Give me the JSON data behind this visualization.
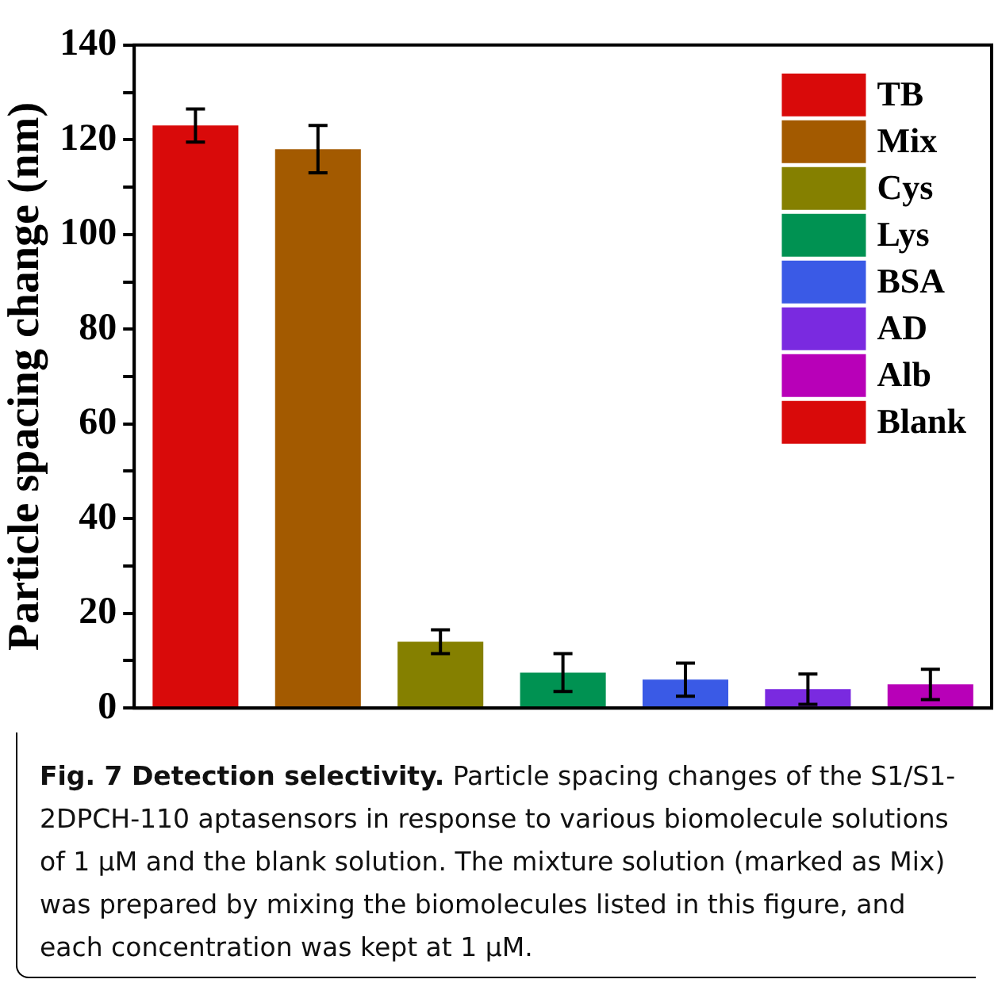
{
  "chart_data": {
    "type": "bar",
    "ylabel": "Particle spacing change (nm)",
    "categories": [
      null,
      null,
      null,
      null,
      null,
      null,
      null
    ],
    "series": [
      {
        "name": "TB",
        "color": "#d90a0a",
        "values": [
          123,
          null,
          null,
          null,
          null,
          null,
          null
        ],
        "errors": [
          3.5,
          null,
          null,
          null,
          null,
          null,
          null
        ]
      },
      {
        "name": "Mix",
        "color": "#a35a00",
        "values": [
          null,
          118,
          null,
          null,
          null,
          null,
          null
        ],
        "errors": [
          null,
          5,
          null,
          null,
          null,
          null,
          null
        ]
      },
      {
        "name": "Cys",
        "color": "#858000",
        "values": [
          null,
          null,
          14,
          null,
          null,
          null,
          null
        ],
        "errors": [
          null,
          null,
          2.5,
          null,
          null,
          null,
          null
        ]
      },
      {
        "name": "Lys",
        "color": "#009252",
        "values": [
          null,
          null,
          null,
          7.5,
          null,
          null,
          null
        ],
        "errors": [
          null,
          null,
          null,
          4,
          null,
          null,
          null
        ]
      },
      {
        "name": "BSA",
        "color": "#3a5ae6",
        "values": [
          null,
          null,
          null,
          null,
          6,
          null,
          null
        ],
        "errors": [
          null,
          null,
          null,
          null,
          3.5,
          null,
          null
        ]
      },
      {
        "name": "AD",
        "color": "#7a2ae0",
        "values": [
          null,
          null,
          null,
          null,
          null,
          4,
          null
        ],
        "errors": [
          null,
          null,
          null,
          null,
          null,
          3.2,
          null
        ]
      },
      {
        "name": "Alb",
        "color": "#b800b8",
        "values": [
          null,
          null,
          null,
          null,
          null,
          null,
          5
        ],
        "errors": [
          null,
          null,
          null,
          null,
          null,
          null,
          3.2
        ]
      },
      {
        "name": "Blank",
        "color": "#d90a0a",
        "values": [
          null,
          null,
          null,
          null,
          null,
          null,
          null
        ]
      }
    ],
    "ylim": [
      0,
      140
    ],
    "yticks": [
      0,
      {
        "value": 10,
        "label": null
      },
      20,
      {
        "value": 30,
        "label": null
      },
      40,
      {
        "value": 50,
        "label": null
      },
      60,
      {
        "value": 70,
        "label": null
      },
      80,
      {
        "value": 90,
        "label": null
      },
      100,
      {
        "value": 110,
        "label": null
      },
      120,
      {
        "value": 130,
        "label": null
      },
      140
    ],
    "tick_labels": "y",
    "grid": false,
    "legend": "top right",
    "annotations": [
      "Fig. 7 Detection selectivity.",
      "Particle spacing changes of the S1/S1-2DPCH-110 aptasensors in response to various biomolecule solutions of 1 μM and the blank solution. The mixture solution (marked as Mix) was prepared by mixing the biomolecules listed in this figure, and each concentration was kept at 1 μM."
    ]
  }
}
